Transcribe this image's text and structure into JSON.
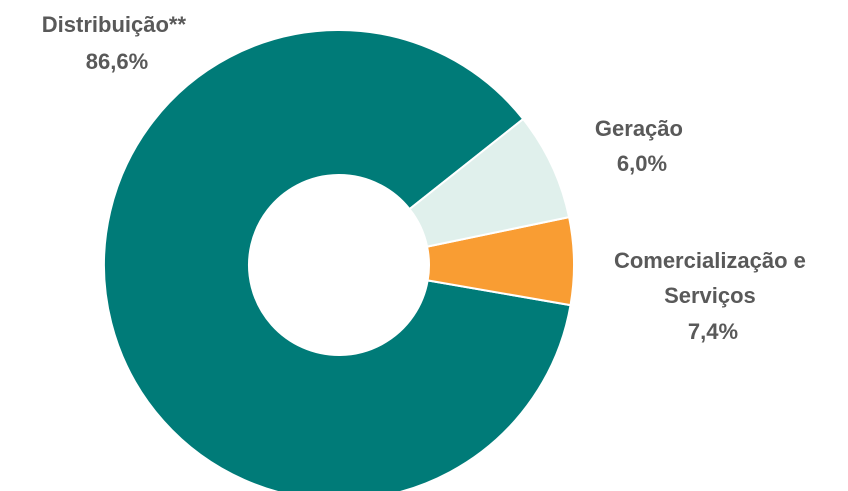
{
  "chart_data": {
    "type": "pie",
    "donut": true,
    "slices": [
      {
        "name": "Distribuição**",
        "value_label": "86,6%",
        "value": 86.6,
        "color": "#007b78"
      },
      {
        "name": "Geração",
        "value_label": "6,0%",
        "value": 6.0,
        "color": "#f99d33"
      },
      {
        "name": "Comercialização e Serviços",
        "name_lines": [
          "Comercialização e",
          "Serviços"
        ],
        "value_label": "7,4%",
        "value": 7.4,
        "color": "#e0f0ec"
      }
    ]
  }
}
